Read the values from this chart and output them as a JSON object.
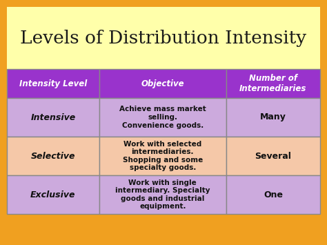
{
  "title": "Levels of Distribution Intensity",
  "title_fontsize": 19,
  "title_color": "#1a1a1a",
  "background_color": "#f0a020",
  "title_bg_color": "#ffffaa",
  "header_bg_color": "#9933cc",
  "header_text_color": "#ffffff",
  "header_labels": [
    "Intensity Level",
    "Objective",
    "Number of\nIntermediaries"
  ],
  "rows": [
    {
      "level": "Intensive",
      "objective": "Achieve mass market\nselling.\nConvenience goods.",
      "number": "Many",
      "bg": "#ccaadd"
    },
    {
      "level": "Selective",
      "objective": "Work with selected\nintermediaries.\nShopping and some\nspecialty goods.",
      "number": "Several",
      "bg": "#f5c8a8"
    },
    {
      "level": "Exclusive",
      "objective": "Work with single\nintermediary. Specialty\ngoods and industrial\nequipment.",
      "number": "One",
      "bg": "#ccaadd"
    }
  ],
  "border_color": "#888888",
  "border_lw": 1.0
}
